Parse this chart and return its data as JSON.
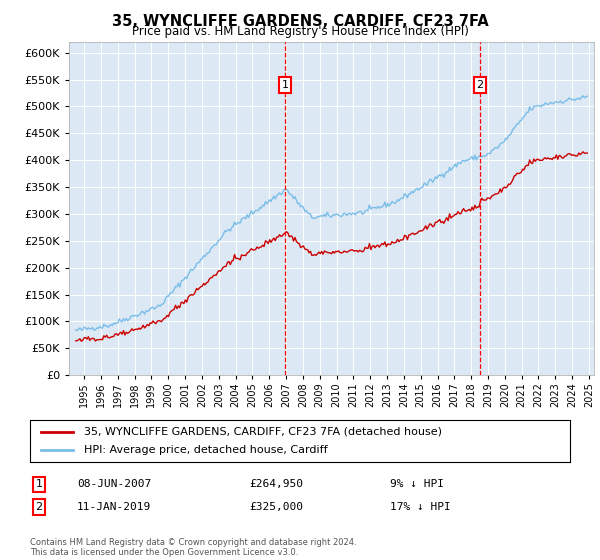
{
  "title": "35, WYNCLIFFE GARDENS, CARDIFF, CF23 7FA",
  "subtitle": "Price paid vs. HM Land Registry's House Price Index (HPI)",
  "legend_entries": [
    "35, WYNCLIFFE GARDENS, CARDIFF, CF23 7FA (detached house)",
    "HPI: Average price, detached house, Cardiff"
  ],
  "sale1": {
    "date": "08-JUN-2007",
    "price": 264950,
    "label": "1",
    "pct": "9% ↓ HPI"
  },
  "sale2": {
    "date": "11-JAN-2019",
    "price": 325000,
    "label": "2",
    "pct": "17% ↓ HPI"
  },
  "sale1_x": 2007.44,
  "sale2_x": 2019.03,
  "ylim": [
    0,
    620000
  ],
  "yticks": [
    0,
    50000,
    100000,
    150000,
    200000,
    250000,
    300000,
    350000,
    400000,
    450000,
    500000,
    550000,
    600000
  ],
  "xlim_start": 1994.6,
  "xlim_end": 2025.8,
  "background_color": "#dce9f5",
  "plot_bg": "#dce9f5",
  "hpi_color": "#7abde8",
  "price_color": "#cc0000",
  "grid_color": "#ffffff",
  "marker1_y": 540000,
  "marker2_y": 540000,
  "footnote": "Contains HM Land Registry data © Crown copyright and database right 2024.\nThis data is licensed under the Open Government Licence v3.0."
}
